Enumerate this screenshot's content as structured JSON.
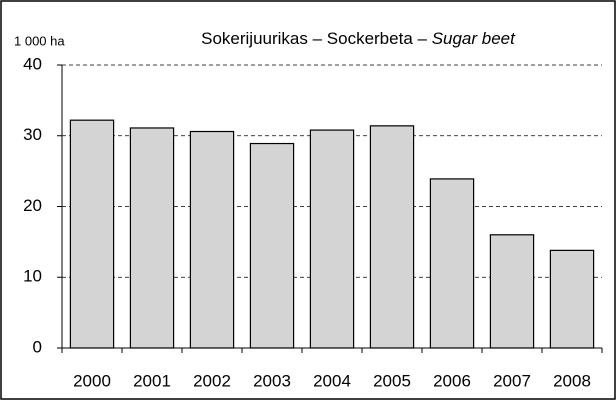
{
  "chart_data": {
    "type": "bar",
    "title": "Sokerijuurikas – Sockerbeta –",
    "title_italic": "Sugar beet",
    "y_axis_label": "1 000 ha",
    "categories": [
      "2000",
      "2001",
      "2002",
      "2003",
      "2004",
      "2005",
      "2006",
      "2007",
      "2008"
    ],
    "values": [
      32.2,
      31.1,
      30.6,
      28.9,
      30.8,
      31.4,
      23.9,
      16.0,
      13.8
    ],
    "color": "#d4d4d4",
    "ylim": [
      0,
      40
    ],
    "yticks": [
      0,
      10,
      20,
      30,
      40
    ],
    "grid": true
  }
}
